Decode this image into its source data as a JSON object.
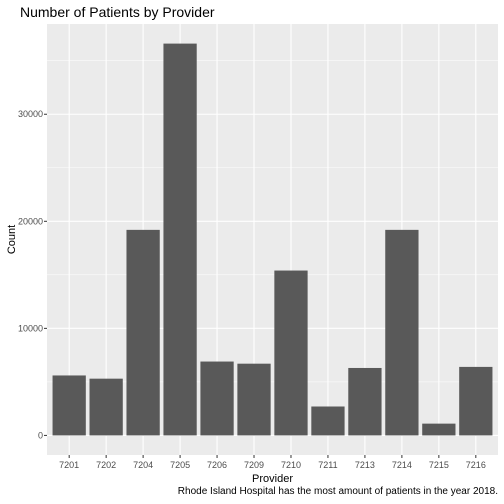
{
  "chart_data": {
    "type": "bar",
    "title": "Number of Patients by Provider",
    "caption": "Rhode Island Hospital has the most amount of patients in the year 2018.",
    "xlabel": "Provider",
    "ylabel": "Count",
    "categories": [
      "7201",
      "7202",
      "7204",
      "7205",
      "7206",
      "7209",
      "7210",
      "7211",
      "7213",
      "7214",
      "7215",
      "7216"
    ],
    "values": [
      5600,
      5300,
      19200,
      36600,
      6900,
      6700,
      15400,
      2700,
      6300,
      19200,
      1100,
      6400
    ],
    "yticks": [
      0,
      10000,
      20000,
      30000
    ],
    "ylim": [
      -1830,
      38430
    ],
    "grid": true,
    "bar_color": "#595959",
    "panel_color": "#ebebeb",
    "grid_color": "#ffffff"
  }
}
